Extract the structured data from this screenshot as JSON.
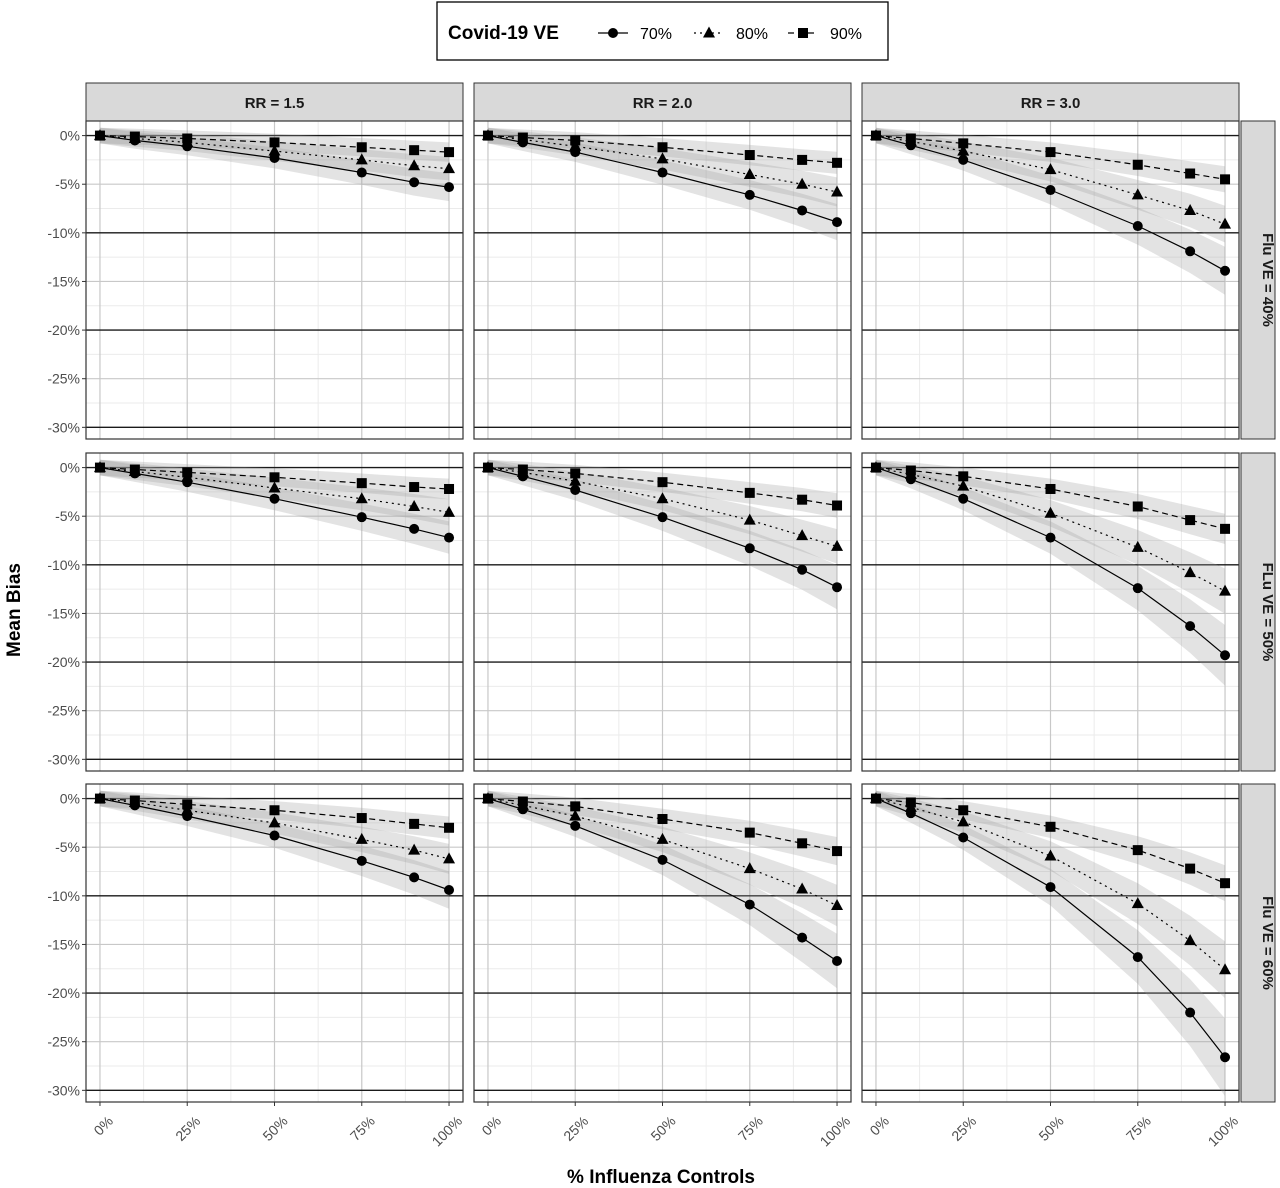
{
  "chart_data": {
    "type": "line",
    "xlabel": "% Influenza Controls",
    "ylabel": "Mean Bias",
    "x": [
      0,
      10,
      25,
      50,
      75,
      90,
      100
    ],
    "x_ticks": [
      0,
      25,
      50,
      75,
      100
    ],
    "x_tick_labels": [
      "0%",
      "25%",
      "50%",
      "75%",
      "100%"
    ],
    "y_ticks": [
      0,
      -5,
      -10,
      -15,
      -20,
      -25,
      -30
    ],
    "y_tick_labels": [
      "0%",
      "-5%",
      "-10%",
      "-15%",
      "-20%",
      "-25%",
      "-30%"
    ],
    "xlim": [
      -4,
      104
    ],
    "ylim": [
      -31.2,
      1.5
    ],
    "grid": true,
    "legend": {
      "title": "Covid-19 VE",
      "placement": "top",
      "entries": [
        {
          "label": "70%",
          "marker": "circle",
          "linetype": "solid"
        },
        {
          "label": "80%",
          "marker": "triangle",
          "linetype": "dotted"
        },
        {
          "label": "90%",
          "marker": "square",
          "linetype": "dashed"
        }
      ]
    },
    "col_labels": [
      "RR = 1.5",
      "RR = 2.0",
      "RR = 3.0"
    ],
    "row_labels": [
      "Flu VE = 40%",
      "FLu VE = 50%",
      "Flu VE = 60%"
    ],
    "panels": [
      {
        "row": 0,
        "col": 0,
        "series": [
          {
            "name": "70%",
            "values": [
              0,
              -0.5,
              -1.1,
              -2.3,
              -3.8,
              -4.8,
              -5.3
            ]
          },
          {
            "name": "80%",
            "values": [
              0,
              -0.3,
              -0.7,
              -1.6,
              -2.5,
              -3.1,
              -3.4
            ]
          },
          {
            "name": "90%",
            "values": [
              0,
              -0.1,
              -0.3,
              -0.7,
              -1.2,
              -1.5,
              -1.7
            ]
          }
        ]
      },
      {
        "row": 0,
        "col": 1,
        "series": [
          {
            "name": "70%",
            "values": [
              0,
              -0.7,
              -1.7,
              -3.8,
              -6.1,
              -7.7,
              -8.9
            ]
          },
          {
            "name": "80%",
            "values": [
              0,
              -0.4,
              -1.1,
              -2.4,
              -4.0,
              -5.0,
              -5.8
            ]
          },
          {
            "name": "90%",
            "values": [
              0,
              -0.2,
              -0.5,
              -1.2,
              -2.0,
              -2.5,
              -2.8
            ]
          }
        ]
      },
      {
        "row": 0,
        "col": 2,
        "series": [
          {
            "name": "70%",
            "values": [
              0,
              -1.0,
              -2.5,
              -5.6,
              -9.3,
              -11.9,
              -13.9
            ]
          },
          {
            "name": "80%",
            "values": [
              0,
              -0.6,
              -1.6,
              -3.5,
              -6.1,
              -7.7,
              -9.1
            ]
          },
          {
            "name": "90%",
            "values": [
              0,
              -0.3,
              -0.8,
              -1.7,
              -3.0,
              -3.9,
              -4.5
            ]
          }
        ]
      },
      {
        "row": 1,
        "col": 0,
        "series": [
          {
            "name": "70%",
            "values": [
              0,
              -0.6,
              -1.5,
              -3.2,
              -5.1,
              -6.3,
              -7.2
            ]
          },
          {
            "name": "80%",
            "values": [
              0,
              -0.4,
              -1.0,
              -2.1,
              -3.2,
              -4.0,
              -4.6
            ]
          },
          {
            "name": "90%",
            "values": [
              0,
              -0.2,
              -0.5,
              -1.0,
              -1.6,
              -2.0,
              -2.2
            ]
          }
        ]
      },
      {
        "row": 1,
        "col": 1,
        "series": [
          {
            "name": "70%",
            "values": [
              0,
              -0.9,
              -2.3,
              -5.1,
              -8.3,
              -10.5,
              -12.3
            ]
          },
          {
            "name": "80%",
            "values": [
              0,
              -0.5,
              -1.4,
              -3.2,
              -5.4,
              -7.0,
              -8.1
            ]
          },
          {
            "name": "90%",
            "values": [
              0,
              -0.2,
              -0.6,
              -1.5,
              -2.6,
              -3.3,
              -3.9
            ]
          }
        ]
      },
      {
        "row": 1,
        "col": 2,
        "series": [
          {
            "name": "70%",
            "values": [
              0,
              -1.2,
              -3.2,
              -7.2,
              -12.4,
              -16.3,
              -19.3
            ]
          },
          {
            "name": "80%",
            "values": [
              0,
              -0.7,
              -1.9,
              -4.7,
              -8.2,
              -10.8,
              -12.7
            ]
          },
          {
            "name": "90%",
            "values": [
              0,
              -0.3,
              -0.9,
              -2.2,
              -4.0,
              -5.4,
              -6.3
            ]
          }
        ]
      },
      {
        "row": 2,
        "col": 0,
        "series": [
          {
            "name": "70%",
            "values": [
              0,
              -0.7,
              -1.8,
              -3.8,
              -6.4,
              -8.1,
              -9.4
            ]
          },
          {
            "name": "80%",
            "values": [
              0,
              -0.4,
              -1.2,
              -2.5,
              -4.2,
              -5.3,
              -6.2
            ]
          },
          {
            "name": "90%",
            "values": [
              0,
              -0.2,
              -0.6,
              -1.2,
              -2.0,
              -2.6,
              -3.0
            ]
          }
        ]
      },
      {
        "row": 2,
        "col": 1,
        "series": [
          {
            "name": "70%",
            "values": [
              0,
              -1.1,
              -2.8,
              -6.3,
              -10.9,
              -14.3,
              -16.7
            ]
          },
          {
            "name": "80%",
            "values": [
              0,
              -0.7,
              -1.8,
              -4.2,
              -7.2,
              -9.3,
              -11.0
            ]
          },
          {
            "name": "90%",
            "values": [
              0,
              -0.3,
              -0.8,
              -2.1,
              -3.5,
              -4.6,
              -5.4
            ]
          }
        ]
      },
      {
        "row": 2,
        "col": 2,
        "series": [
          {
            "name": "70%",
            "values": [
              0,
              -1.5,
              -4.0,
              -9.1,
              -16.3,
              -22.0,
              -26.6
            ]
          },
          {
            "name": "80%",
            "values": [
              0,
              -0.9,
              -2.4,
              -5.9,
              -10.8,
              -14.6,
              -17.6
            ]
          },
          {
            "name": "90%",
            "values": [
              0,
              -0.4,
              -1.2,
              -2.9,
              -5.3,
              -7.2,
              -8.7
            ]
          }
        ]
      }
    ]
  }
}
